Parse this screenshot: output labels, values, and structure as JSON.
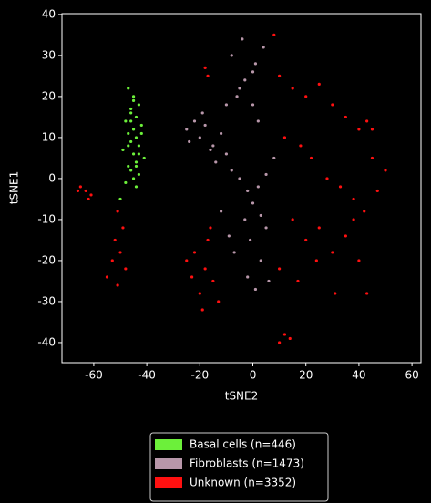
{
  "chart_data": {
    "type": "scatter",
    "xlabel": "tSNE2",
    "ylabel": "tSNE1",
    "xlim": [
      -72,
      63.4
    ],
    "ylim": [
      -44.9,
      40.2
    ],
    "xticks": [
      -60,
      -40,
      -20,
      0,
      20,
      40,
      60
    ],
    "yticks": [
      -40,
      -30,
      -20,
      -10,
      0,
      10,
      20,
      30,
      40
    ],
    "legend": "bottom",
    "series": [
      {
        "name": "Basal cells (n=446)",
        "color": "#6cf03a",
        "x": [
          -47,
          -45,
          -43,
          -46,
          -44,
          -48,
          -42,
          -45,
          -47,
          -44,
          -46,
          -43,
          -49,
          -45,
          -41,
          -44,
          -47,
          -46,
          -43,
          -45,
          -48,
          -44,
          -46,
          -42,
          -45,
          -47,
          -44,
          -50,
          -46,
          -43
        ],
        "y": [
          22,
          20,
          18,
          16,
          15,
          14,
          13,
          12,
          11,
          10,
          9,
          8,
          7,
          6,
          5,
          4,
          3,
          2,
          1,
          0,
          -1,
          -2,
          17,
          11,
          19,
          8,
          3,
          -5,
          14,
          6
        ]
      },
      {
        "name": "Fibroblasts (n=1473)",
        "color": "#b897aa",
        "x": [
          -25,
          -22,
          -20,
          -18,
          -15,
          -12,
          -10,
          -24,
          -19,
          -14,
          -8,
          -5,
          -2,
          0,
          3,
          5,
          -6,
          -3,
          1,
          4,
          -4,
          0,
          2,
          -1,
          3,
          -7,
          -2,
          1,
          6,
          8,
          -10,
          -5,
          0,
          -8,
          -3,
          2,
          5,
          -12,
          -9,
          -16
        ],
        "y": [
          12,
          14,
          10,
          13,
          8,
          11,
          6,
          9,
          16,
          4,
          2,
          0,
          -3,
          -6,
          -9,
          -12,
          20,
          24,
          28,
          32,
          34,
          18,
          14,
          -15,
          -20,
          -18,
          -24,
          -27,
          -25,
          5,
          18,
          22,
          26,
          30,
          -10,
          -2,
          1,
          -8,
          -14,
          7
        ]
      },
      {
        "name": "Unknown (n=3352)",
        "color": "#ff1010",
        "x": [
          -65,
          -63,
          -61,
          -66,
          -62,
          -51,
          -49,
          -52,
          -50,
          -53,
          -48,
          -55,
          -51,
          -22,
          -18,
          -15,
          -20,
          -25,
          -17,
          -13,
          -19,
          -23,
          -16,
          -18,
          -17,
          12,
          10,
          14,
          43,
          45,
          8,
          10,
          15,
          20,
          25,
          30,
          35,
          40,
          45,
          50,
          12,
          18,
          22,
          28,
          33,
          38,
          42,
          47,
          15,
          20,
          25,
          30,
          35,
          40,
          10,
          17,
          24,
          31,
          38,
          43
        ],
        "y": [
          -2,
          -3,
          -4,
          -3,
          -5,
          -8,
          -12,
          -15,
          -18,
          -20,
          -22,
          -24,
          -26,
          -18,
          -22,
          -25,
          -28,
          -20,
          -15,
          -30,
          -32,
          -24,
          -12,
          27,
          25,
          -38,
          -40,
          -39,
          14,
          12,
          35,
          25,
          22,
          20,
          23,
          18,
          15,
          12,
          5,
          2,
          10,
          8,
          5,
          0,
          -2,
          -5,
          -8,
          -3,
          -10,
          -15,
          -12,
          -18,
          -14,
          -20,
          -22,
          -25,
          -20,
          -28,
          -10,
          -28
        ]
      }
    ]
  }
}
